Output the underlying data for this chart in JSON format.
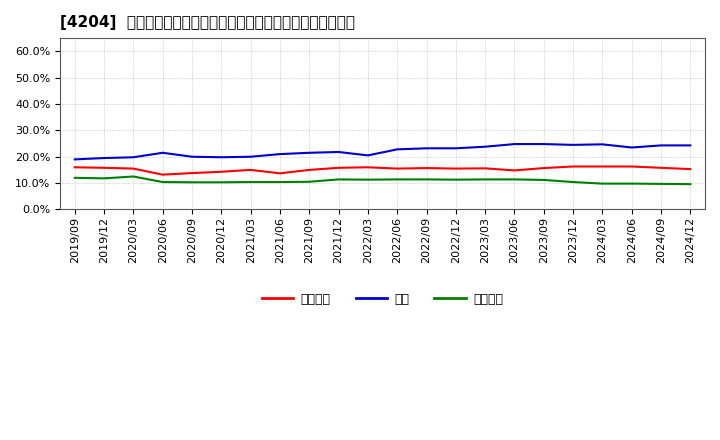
{
  "title": "[4204]  売上債権、在庫、買入債務の総資産に対する比率の推移",
  "x_labels": [
    "2019/09",
    "2019/12",
    "2020/03",
    "2020/06",
    "2020/09",
    "2020/12",
    "2021/03",
    "2021/06",
    "2021/09",
    "2021/12",
    "2022/03",
    "2022/06",
    "2022/09",
    "2022/12",
    "2023/03",
    "2023/06",
    "2023/09",
    "2023/12",
    "2024/03",
    "2024/06",
    "2024/09",
    "2024/12"
  ],
  "uriage": [
    0.16,
    0.158,
    0.155,
    0.132,
    0.138,
    0.143,
    0.15,
    0.137,
    0.15,
    0.158,
    0.16,
    0.155,
    0.157,
    0.155,
    0.156,
    0.148,
    0.157,
    0.163,
    0.163,
    0.163,
    0.158,
    0.153
  ],
  "zaiko": [
    0.19,
    0.195,
    0.198,
    0.215,
    0.2,
    0.198,
    0.2,
    0.21,
    0.215,
    0.218,
    0.205,
    0.228,
    0.232,
    0.232,
    0.238,
    0.248,
    0.248,
    0.245,
    0.247,
    0.235,
    0.243,
    0.243
  ],
  "kaiire": [
    0.12,
    0.118,
    0.125,
    0.104,
    0.103,
    0.103,
    0.104,
    0.104,
    0.105,
    0.114,
    0.113,
    0.114,
    0.114,
    0.113,
    0.114,
    0.114,
    0.112,
    0.104,
    0.098,
    0.098,
    0.097,
    0.096
  ],
  "uriage_color": "#ff0000",
  "zaiko_color": "#0000cc",
  "kaiire_color": "#008000",
  "uriage_label": "売上債権",
  "zaiko_label": "在庫",
  "kaiire_label": "買入債務",
  "ylim": [
    0.0,
    0.65
  ],
  "yticks": [
    0.0,
    0.1,
    0.2,
    0.3,
    0.4,
    0.5,
    0.6
  ],
  "background_color": "#ffffff",
  "grid_color": "#999999",
  "title_fontsize": 11,
  "tick_fontsize": 8,
  "legend_fontsize": 9
}
